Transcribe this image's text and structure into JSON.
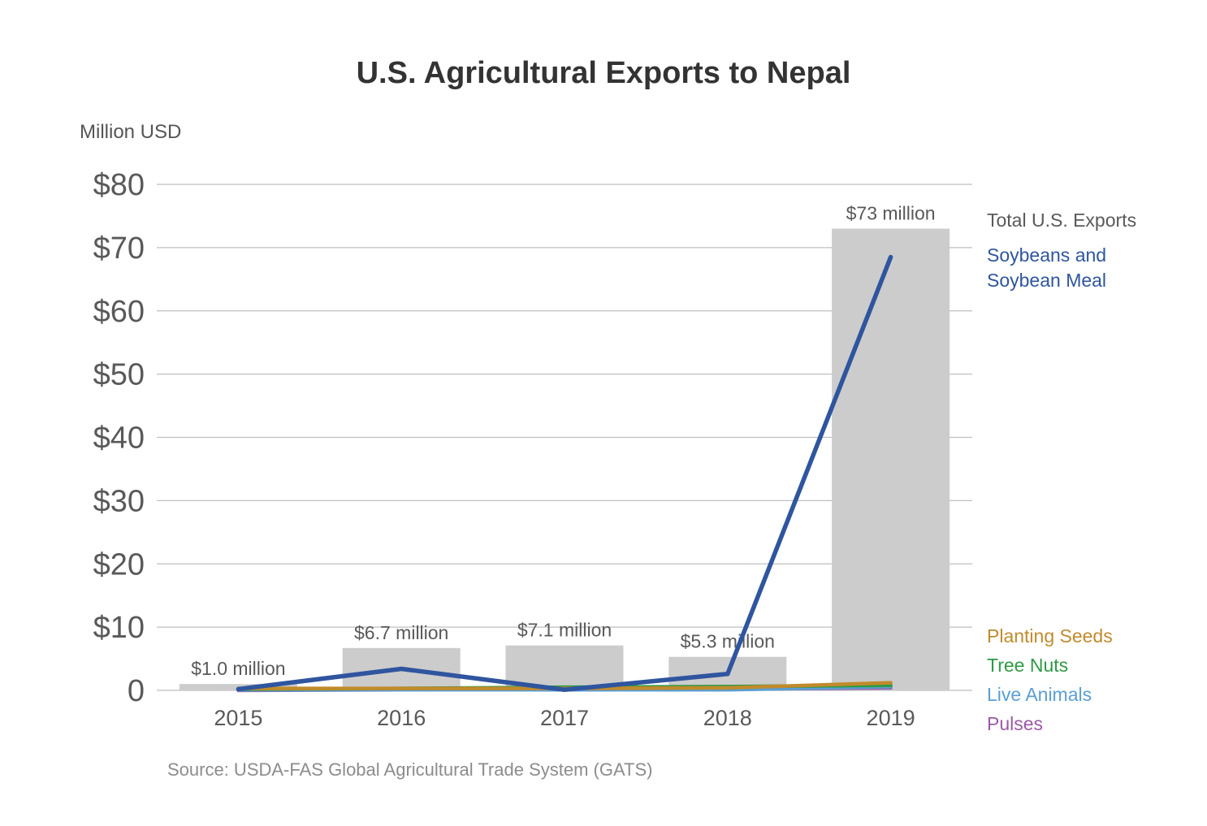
{
  "chart_data": {
    "type": "bar",
    "title": "U.S. Agricultural Exports to Nepal",
    "ylabel": "Million USD",
    "xlabel": "",
    "ylim": [
      0,
      80
    ],
    "yticks": [
      0,
      10,
      20,
      30,
      40,
      50,
      60,
      70,
      80
    ],
    "ytick_labels": [
      "0",
      "$10",
      "$20",
      "$30",
      "$40",
      "$50",
      "$60",
      "$70",
      "$80"
    ],
    "categories": [
      "2015",
      "2016",
      "2017",
      "2018",
      "2019"
    ],
    "grid": true,
    "bars": {
      "name": "Total U.S. Exports",
      "values": [
        1.0,
        6.7,
        7.1,
        5.3,
        73
      ],
      "labels": [
        "$1.0 million",
        "$6.7 million",
        "$7.1 million",
        "$5.3 million",
        "$73 million"
      ],
      "color": "#cccccc"
    },
    "series": [
      {
        "name": "Soybeans and Soybean Meal",
        "type": "line",
        "values": [
          0.2,
          3.4,
          0.1,
          2.6,
          68.5
        ],
        "color": "#2f559f"
      },
      {
        "name": "Planting Seeds",
        "type": "line",
        "values": [
          0.3,
          0.3,
          0.3,
          0.4,
          1.2
        ],
        "color": "#c08b2c"
      },
      {
        "name": "Tree Nuts",
        "type": "line",
        "values": [
          0.2,
          0.3,
          0.5,
          0.6,
          0.8
        ],
        "color": "#2e9a45"
      },
      {
        "name": "Live Animals",
        "type": "line",
        "values": [
          0.1,
          0.1,
          0.1,
          0.1,
          0.6
        ],
        "color": "#5a9fd4"
      },
      {
        "name": "Pulses",
        "type": "line",
        "values": [
          0.0,
          0.1,
          0.1,
          0.2,
          0.4
        ],
        "color": "#9b59a6"
      }
    ],
    "legend_position": "right",
    "source": "Source: USDA-FAS Global Agricultural Trade System (GATS)"
  }
}
